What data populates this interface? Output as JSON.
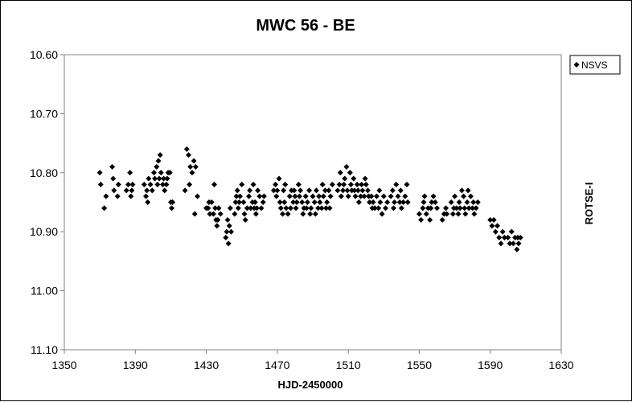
{
  "chart_data": {
    "type": "scatter",
    "title": "MWC 56 - BE",
    "xlabel": "HJD-2450000",
    "ylabel": "ROTSE-I",
    "xlim": [
      1350,
      1630
    ],
    "ylim": [
      10.6,
      11.1
    ],
    "y_inverted": true,
    "x_ticks": [
      "1350",
      "1390",
      "1430",
      "1470",
      "1510",
      "1550",
      "1590",
      "1630"
    ],
    "y_ticks": [
      "10.60",
      "10.70",
      "10.80",
      "10.90",
      "11.00",
      "11.10"
    ],
    "grid": false,
    "legend_position": "top-right",
    "colors": {
      "marker": "#000000",
      "background": "#ffffff"
    },
    "series": [
      {
        "name": "NSVS",
        "marker": "diamond",
        "x": [
          1370,
          1370.5,
          1372.5,
          1373.5,
          1377,
          1377.5,
          1378,
          1380,
          1380.5,
          1385,
          1386,
          1387,
          1387.5,
          1388,
          1388.5,
          1395,
          1396,
          1396.5,
          1397,
          1397.5,
          1398.5,
          1399.5,
          1400.5,
          1401,
          1402,
          1402.5,
          1403,
          1403.5,
          1404,
          1404.5,
          1405.5,
          1406,
          1406.5,
          1407.5,
          1408,
          1408.5,
          1409.5,
          1410,
          1410.5,
          1411,
          1418,
          1419,
          1420,
          1420.5,
          1421,
          1422,
          1423,
          1423.5,
          1424,
          1425,
          1430,
          1431,
          1431.5,
          1432,
          1433,
          1434,
          1434.5,
          1435,
          1435.5,
          1436,
          1436.5,
          1437,
          1438,
          1441,
          1441.5,
          1442,
          1442.5,
          1443,
          1443.5,
          1444,
          1446,
          1446.5,
          1447,
          1447.5,
          1448,
          1448.5,
          1449,
          1450,
          1451,
          1451.5,
          1452,
          1453,
          1454,
          1454.5,
          1455,
          1456,
          1456.5,
          1457,
          1457.5,
          1458,
          1458.5,
          1459,
          1460,
          1461,
          1462,
          1462.5,
          1468,
          1469,
          1469.5,
          1470,
          1471,
          1471.5,
          1472,
          1473,
          1473.5,
          1474,
          1474.5,
          1475,
          1476,
          1477,
          1477.5,
          1478,
          1479,
          1479.5,
          1480,
          1480.5,
          1481,
          1482,
          1482.5,
          1483,
          1484,
          1484.5,
          1485,
          1486,
          1486.5,
          1487,
          1488,
          1488.5,
          1489,
          1490,
          1491,
          1491.5,
          1492,
          1493,
          1493.5,
          1494,
          1495,
          1495.5,
          1496,
          1497,
          1497.5,
          1498,
          1499,
          1499.5,
          1500,
          1501,
          1504,
          1505,
          1505.5,
          1506,
          1507,
          1507.5,
          1508,
          1509,
          1509.5,
          1510,
          1511,
          1511.5,
          1512,
          1513,
          1513.5,
          1514,
          1515,
          1515.5,
          1516,
          1517,
          1517.5,
          1518,
          1519,
          1519.5,
          1520,
          1521,
          1521.5,
          1522,
          1523,
          1523.5,
          1524,
          1525,
          1526,
          1527,
          1527.5,
          1528,
          1529,
          1530,
          1531,
          1532,
          1534,
          1535,
          1535.5,
          1536,
          1537,
          1538,
          1539,
          1539.5,
          1540,
          1541,
          1542,
          1543,
          1543.5,
          1550,
          1551,
          1552,
          1552.5,
          1553,
          1554,
          1555,
          1556,
          1556.5,
          1557,
          1558,
          1559,
          1560,
          1563,
          1564,
          1565,
          1565.5,
          1568,
          1569,
          1569.5,
          1570,
          1571,
          1572,
          1572.5,
          1573,
          1574,
          1575,
          1575.5,
          1576,
          1577,
          1577.5,
          1578,
          1579,
          1580,
          1580.5,
          1581,
          1582,
          1583,
          1590,
          1591,
          1592,
          1593,
          1594,
          1595,
          1596,
          1597,
          1598,
          1600,
          1601,
          1602,
          1603,
          1604,
          1605,
          1605.5,
          1606,
          1607
        ],
        "y": [
          10.8,
          10.82,
          10.86,
          10.84,
          10.79,
          10.81,
          10.83,
          10.84,
          10.82,
          10.83,
          10.82,
          10.8,
          10.84,
          10.83,
          10.82,
          10.82,
          10.84,
          10.83,
          10.85,
          10.81,
          10.82,
          10.83,
          10.8,
          10.81,
          10.79,
          10.82,
          10.78,
          10.81,
          10.77,
          10.8,
          10.82,
          10.81,
          10.83,
          10.82,
          10.81,
          10.8,
          10.8,
          10.85,
          10.86,
          10.85,
          10.83,
          10.76,
          10.77,
          10.82,
          10.79,
          10.8,
          10.78,
          10.87,
          10.79,
          10.84,
          10.86,
          10.86,
          10.85,
          10.87,
          10.85,
          10.87,
          10.82,
          10.86,
          10.88,
          10.89,
          10.88,
          10.86,
          10.87,
          10.91,
          10.9,
          10.88,
          10.92,
          10.89,
          10.86,
          10.9,
          10.87,
          10.85,
          10.84,
          10.83,
          10.86,
          10.85,
          10.84,
          10.82,
          10.85,
          10.87,
          10.88,
          10.86,
          10.84,
          10.83,
          10.86,
          10.85,
          10.82,
          10.86,
          10.85,
          10.87,
          10.86,
          10.83,
          10.84,
          10.86,
          10.85,
          10.84,
          10.83,
          10.82,
          10.84,
          10.83,
          10.81,
          10.85,
          10.86,
          10.87,
          10.83,
          10.85,
          10.82,
          10.86,
          10.87,
          10.84,
          10.86,
          10.83,
          10.85,
          10.83,
          10.84,
          10.86,
          10.85,
          10.82,
          10.84,
          10.83,
          10.85,
          10.87,
          10.86,
          10.84,
          10.86,
          10.85,
          10.83,
          10.87,
          10.86,
          10.84,
          10.85,
          10.87,
          10.83,
          10.86,
          10.84,
          10.85,
          10.86,
          10.82,
          10.84,
          10.83,
          10.86,
          10.85,
          10.83,
          10.86,
          10.84,
          10.82,
          10.83,
          10.82,
          10.8,
          10.84,
          10.83,
          10.82,
          10.81,
          10.79,
          10.83,
          10.84,
          10.8,
          10.82,
          10.83,
          10.81,
          10.83,
          10.84,
          10.82,
          10.83,
          10.85,
          10.84,
          10.82,
          10.83,
          10.84,
          10.81,
          10.82,
          10.83,
          10.84,
          10.85,
          10.84,
          10.86,
          10.85,
          10.86,
          10.84,
          10.86,
          10.83,
          10.85,
          10.87,
          10.84,
          10.86,
          10.85,
          10.84,
          10.83,
          10.86,
          10.85,
          10.82,
          10.84,
          10.85,
          10.83,
          10.86,
          10.85,
          10.84,
          10.82,
          10.85,
          10.87,
          10.88,
          10.86,
          10.85,
          10.84,
          10.87,
          10.86,
          10.88,
          10.86,
          10.85,
          10.84,
          10.85,
          10.86,
          10.88,
          10.87,
          10.86,
          10.87,
          10.85,
          10.87,
          10.86,
          10.84,
          10.86,
          10.87,
          10.85,
          10.86,
          10.83,
          10.84,
          10.86,
          10.87,
          10.85,
          10.83,
          10.86,
          10.84,
          10.86,
          10.85,
          10.87,
          10.86,
          10.85,
          10.88,
          10.89,
          10.88,
          10.9,
          10.89,
          10.91,
          10.92,
          10.9,
          10.91,
          10.91,
          10.92,
          10.9,
          10.92,
          10.91,
          10.93,
          10.91,
          10.92,
          10.91
        ]
      }
    ]
  }
}
